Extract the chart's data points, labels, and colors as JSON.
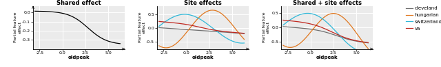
{
  "titles": [
    "Shared effect",
    "Site effects",
    "Shared + site effects"
  ],
  "xlabel": "oldpeak",
  "ylabel": "Partial feature\neffect",
  "xlim": [
    -3.2,
    6.8
  ],
  "colors": {
    "cleveland": "#707070",
    "hungarian": "#e07820",
    "switzerland": "#30b8d8",
    "va": "#c02820"
  },
  "legend_labels": [
    "cleveland",
    "hungarian",
    "switzerland",
    "va"
  ],
  "panel1_ylim": [
    -0.4,
    0.07
  ],
  "panel1_yticks": [
    0.0,
    -0.1,
    -0.2,
    -0.3
  ],
  "panel2_ylim": [
    -0.75,
    0.8
  ],
  "panel2_yticks": [
    -0.5,
    0.0,
    0.5
  ],
  "panel3_ylim": [
    -0.75,
    0.75
  ],
  "panel3_yticks": [
    -0.5,
    0.0,
    0.5
  ],
  "xticks": [
    -2.5,
    0.0,
    2.5,
    5.0
  ],
  "background_color": "#ebebeb"
}
